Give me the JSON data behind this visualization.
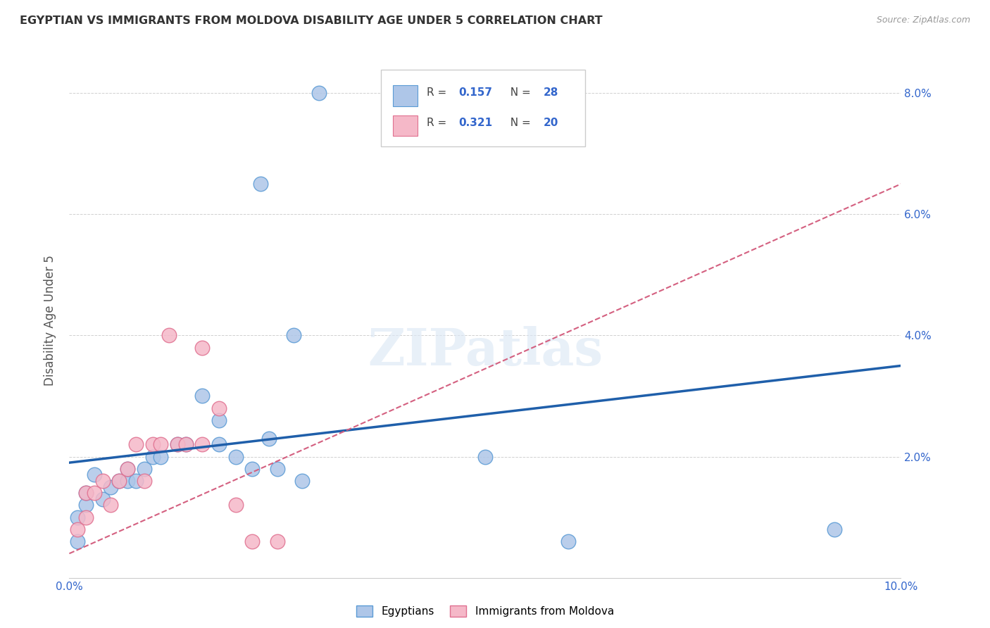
{
  "title": "EGYPTIAN VS IMMIGRANTS FROM MOLDOVA DISABILITY AGE UNDER 5 CORRELATION CHART",
  "source": "Source: ZipAtlas.com",
  "ylabel": "Disability Age Under 5",
  "xlim": [
    0.0,
    0.1
  ],
  "ylim": [
    0.0,
    0.085
  ],
  "egyptians_color": "#aec6e8",
  "moldova_color": "#f5b8c8",
  "egyptians_edge": "#5b9bd5",
  "moldova_edge": "#e07090",
  "trendline_blue": "#1f5faa",
  "trendline_pink": "#d46080",
  "R_egyptian": 0.157,
  "N_egyptian": 28,
  "R_moldova": 0.321,
  "N_moldova": 20,
  "egyptians_x": [
    0.001,
    0.001,
    0.002,
    0.002,
    0.003,
    0.004,
    0.005,
    0.006,
    0.007,
    0.007,
    0.008,
    0.009,
    0.01,
    0.011,
    0.013,
    0.014,
    0.016,
    0.018,
    0.018,
    0.02,
    0.022,
    0.024,
    0.025,
    0.028,
    0.05,
    0.06,
    0.027,
    0.092
  ],
  "egyptians_y": [
    0.01,
    0.006,
    0.012,
    0.014,
    0.017,
    0.013,
    0.015,
    0.016,
    0.016,
    0.018,
    0.016,
    0.018,
    0.02,
    0.02,
    0.022,
    0.022,
    0.03,
    0.026,
    0.022,
    0.02,
    0.018,
    0.023,
    0.018,
    0.016,
    0.02,
    0.006,
    0.04,
    0.008
  ],
  "moldova_x": [
    0.001,
    0.002,
    0.002,
    0.003,
    0.004,
    0.005,
    0.006,
    0.007,
    0.008,
    0.009,
    0.01,
    0.011,
    0.013,
    0.014,
    0.016,
    0.016,
    0.018,
    0.02,
    0.022,
    0.025
  ],
  "moldova_y": [
    0.008,
    0.01,
    0.014,
    0.014,
    0.016,
    0.012,
    0.016,
    0.018,
    0.022,
    0.016,
    0.022,
    0.022,
    0.022,
    0.022,
    0.022,
    0.038,
    0.028,
    0.012,
    0.006,
    0.006
  ],
  "egypt_outlier_x": [
    0.03
  ],
  "egypt_outlier_y": [
    0.08
  ],
  "egypt_outlier2_x": [
    0.023
  ],
  "egypt_outlier2_y": [
    0.065
  ],
  "mol_outlier_x": [
    0.012
  ],
  "mol_outlier_y": [
    0.04
  ]
}
